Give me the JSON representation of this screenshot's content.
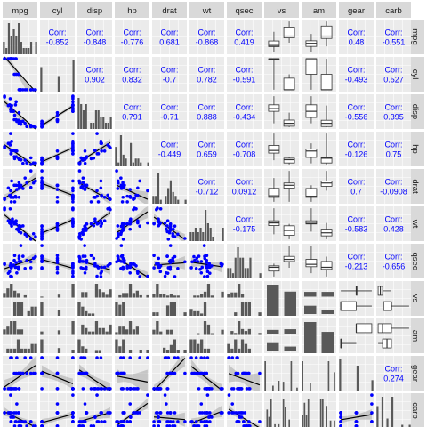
{
  "chart_data": {
    "type": "scatter",
    "title": "",
    "variables": [
      "mpg",
      "cyl",
      "disp",
      "hp",
      "drat",
      "wt",
      "qsec",
      "vs",
      "am",
      "gear",
      "carb"
    ],
    "discrete": [
      "vs",
      "am"
    ],
    "corr_label": "Corr:",
    "correlations": [
      {
        "row": 0,
        "col": 1,
        "value": "-0.852"
      },
      {
        "row": 0,
        "col": 2,
        "value": "-0.848"
      },
      {
        "row": 0,
        "col": 3,
        "value": "-0.776"
      },
      {
        "row": 0,
        "col": 4,
        "value": "0.681"
      },
      {
        "row": 0,
        "col": 5,
        "value": "-0.868"
      },
      {
        "row": 0,
        "col": 6,
        "value": "0.419"
      },
      {
        "row": 0,
        "col": 9,
        "value": "0.48"
      },
      {
        "row": 0,
        "col": 10,
        "value": "-0.551"
      },
      {
        "row": 1,
        "col": 2,
        "value": "0.902"
      },
      {
        "row": 1,
        "col": 3,
        "value": "0.832"
      },
      {
        "row": 1,
        "col": 4,
        "value": "-0.7"
      },
      {
        "row": 1,
        "col": 5,
        "value": "0.782"
      },
      {
        "row": 1,
        "col": 6,
        "value": "-0.591"
      },
      {
        "row": 1,
        "col": 9,
        "value": "-0.493"
      },
      {
        "row": 1,
        "col": 10,
        "value": "0.527"
      },
      {
        "row": 2,
        "col": 3,
        "value": "0.791"
      },
      {
        "row": 2,
        "col": 4,
        "value": "-0.71"
      },
      {
        "row": 2,
        "col": 5,
        "value": "0.888"
      },
      {
        "row": 2,
        "col": 6,
        "value": "-0.434"
      },
      {
        "row": 2,
        "col": 9,
        "value": "-0.556"
      },
      {
        "row": 2,
        "col": 10,
        "value": "0.395"
      },
      {
        "row": 3,
        "col": 4,
        "value": "-0.449"
      },
      {
        "row": 3,
        "col": 5,
        "value": "0.659"
      },
      {
        "row": 3,
        "col": 6,
        "value": "-0.708"
      },
      {
        "row": 3,
        "col": 9,
        "value": "-0.126"
      },
      {
        "row": 3,
        "col": 10,
        "value": "0.75"
      },
      {
        "row": 4,
        "col": 5,
        "value": "-0.712"
      },
      {
        "row": 4,
        "col": 6,
        "value": "0.0912"
      },
      {
        "row": 4,
        "col": 9,
        "value": "0.7"
      },
      {
        "row": 4,
        "col": 10,
        "value": "-0.0908"
      },
      {
        "row": 5,
        "col": 6,
        "value": "-0.175"
      },
      {
        "row": 5,
        "col": 9,
        "value": "-0.583"
      },
      {
        "row": 5,
        "col": 10,
        "value": "0.428"
      },
      {
        "row": 6,
        "col": 9,
        "value": "-0.213"
      },
      {
        "row": 6,
        "col": 10,
        "value": "-0.656"
      },
      {
        "row": 9,
        "col": 10,
        "value": "0.274"
      }
    ],
    "colors": {
      "panel_bg": "#ebebeb",
      "grid": "#ffffff",
      "strip_bg": "#d9d9d9",
      "points": "#0000ff",
      "corr_text": "#0000ff",
      "bars": "#595959",
      "fit_line": "#000000",
      "fit_band": "#999999"
    },
    "records": [
      [
        21.0,
        6,
        160.0,
        110,
        3.9,
        2.62,
        16.46,
        0,
        1,
        4,
        4
      ],
      [
        21.0,
        6,
        160.0,
        110,
        3.9,
        2.875,
        17.02,
        0,
        1,
        4,
        4
      ],
      [
        22.8,
        4,
        108.0,
        93,
        3.85,
        2.32,
        18.61,
        1,
        1,
        4,
        1
      ],
      [
        21.4,
        6,
        258.0,
        110,
        3.08,
        3.215,
        19.44,
        1,
        0,
        3,
        1
      ],
      [
        18.7,
        8,
        360.0,
        175,
        3.15,
        3.44,
        17.02,
        0,
        0,
        3,
        2
      ],
      [
        18.1,
        6,
        225.0,
        105,
        2.76,
        3.46,
        20.22,
        1,
        0,
        3,
        1
      ],
      [
        14.3,
        8,
        360.0,
        245,
        3.21,
        3.57,
        15.84,
        0,
        0,
        3,
        4
      ],
      [
        24.4,
        4,
        146.7,
        62,
        3.69,
        3.19,
        20.0,
        1,
        0,
        4,
        2
      ],
      [
        22.8,
        4,
        140.8,
        95,
        3.92,
        3.15,
        22.9,
        1,
        0,
        4,
        2
      ],
      [
        19.2,
        6,
        167.6,
        123,
        3.92,
        3.44,
        18.3,
        1,
        0,
        4,
        4
      ],
      [
        17.8,
        6,
        167.6,
        123,
        3.92,
        3.44,
        18.9,
        1,
        0,
        4,
        4
      ],
      [
        16.4,
        8,
        275.8,
        180,
        3.07,
        4.07,
        17.4,
        0,
        0,
        3,
        3
      ],
      [
        17.3,
        8,
        275.8,
        180,
        3.07,
        3.73,
        17.6,
        0,
        0,
        3,
        3
      ],
      [
        15.2,
        8,
        275.8,
        180,
        3.07,
        3.78,
        18.0,
        0,
        0,
        3,
        3
      ],
      [
        10.4,
        8,
        472.0,
        205,
        2.93,
        5.25,
        17.98,
        0,
        0,
        3,
        4
      ],
      [
        10.4,
        8,
        460.0,
        215,
        3.0,
        5.424,
        17.82,
        0,
        0,
        3,
        4
      ],
      [
        14.7,
        8,
        440.0,
        230,
        3.23,
        5.345,
        17.42,
        0,
        0,
        3,
        4
      ],
      [
        32.4,
        4,
        78.7,
        66,
        4.08,
        2.2,
        19.47,
        1,
        1,
        4,
        1
      ],
      [
        30.4,
        4,
        75.7,
        52,
        4.93,
        1.615,
        18.52,
        1,
        1,
        4,
        2
      ],
      [
        33.9,
        4,
        71.1,
        65,
        4.22,
        1.835,
        19.9,
        1,
        1,
        4,
        1
      ],
      [
        21.5,
        4,
        120.1,
        97,
        3.7,
        2.465,
        20.01,
        1,
        0,
        3,
        1
      ],
      [
        15.5,
        8,
        318.0,
        150,
        2.76,
        3.52,
        16.87,
        0,
        0,
        3,
        2
      ],
      [
        15.2,
        8,
        304.0,
        150,
        3.15,
        3.435,
        17.3,
        0,
        0,
        3,
        2
      ],
      [
        13.3,
        8,
        350.0,
        245,
        3.73,
        3.84,
        15.41,
        0,
        0,
        3,
        4
      ],
      [
        19.2,
        8,
        400.0,
        175,
        3.08,
        3.845,
        17.05,
        0,
        0,
        3,
        2
      ],
      [
        27.3,
        4,
        79.0,
        66,
        4.08,
        1.935,
        18.9,
        1,
        1,
        4,
        1
      ],
      [
        26.0,
        4,
        120.3,
        91,
        4.43,
        2.14,
        16.7,
        0,
        1,
        5,
        2
      ],
      [
        30.4,
        4,
        95.1,
        113,
        3.77,
        1.513,
        16.9,
        1,
        1,
        5,
        2
      ],
      [
        15.8,
        8,
        351.0,
        264,
        4.22,
        3.17,
        14.5,
        0,
        1,
        5,
        4
      ],
      [
        19.7,
        6,
        145.0,
        175,
        3.62,
        2.77,
        15.5,
        0,
        1,
        5,
        6
      ],
      [
        15.0,
        8,
        301.0,
        335,
        3.54,
        3.57,
        14.6,
        0,
        1,
        5,
        8
      ],
      [
        21.4,
        4,
        121.0,
        109,
        4.11,
        2.78,
        18.6,
        1,
        1,
        4,
        2
      ]
    ]
  }
}
